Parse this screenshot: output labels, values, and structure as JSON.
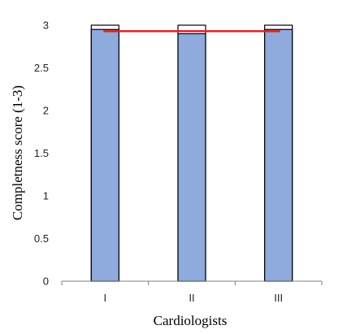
{
  "chart_data": {
    "type": "bar",
    "title": "",
    "categories": [
      "I",
      "II",
      "III"
    ],
    "series": [
      {
        "values": [
          2.95,
          2.9,
          2.95
        ],
        "color": "#8faadc"
      }
    ],
    "upper_bound": [
      3,
      3,
      3
    ],
    "reference_line": {
      "value": 2.93,
      "color": "#e02020"
    },
    "xlabel": "Cardiologists",
    "ylabel": "Completness score (1-3)",
    "ylim": [
      0,
      3
    ],
    "yticks": [
      "0",
      "0.5",
      "1",
      "1.5",
      "2",
      "2.5",
      "3"
    ],
    "grid": false,
    "legend": "none"
  }
}
